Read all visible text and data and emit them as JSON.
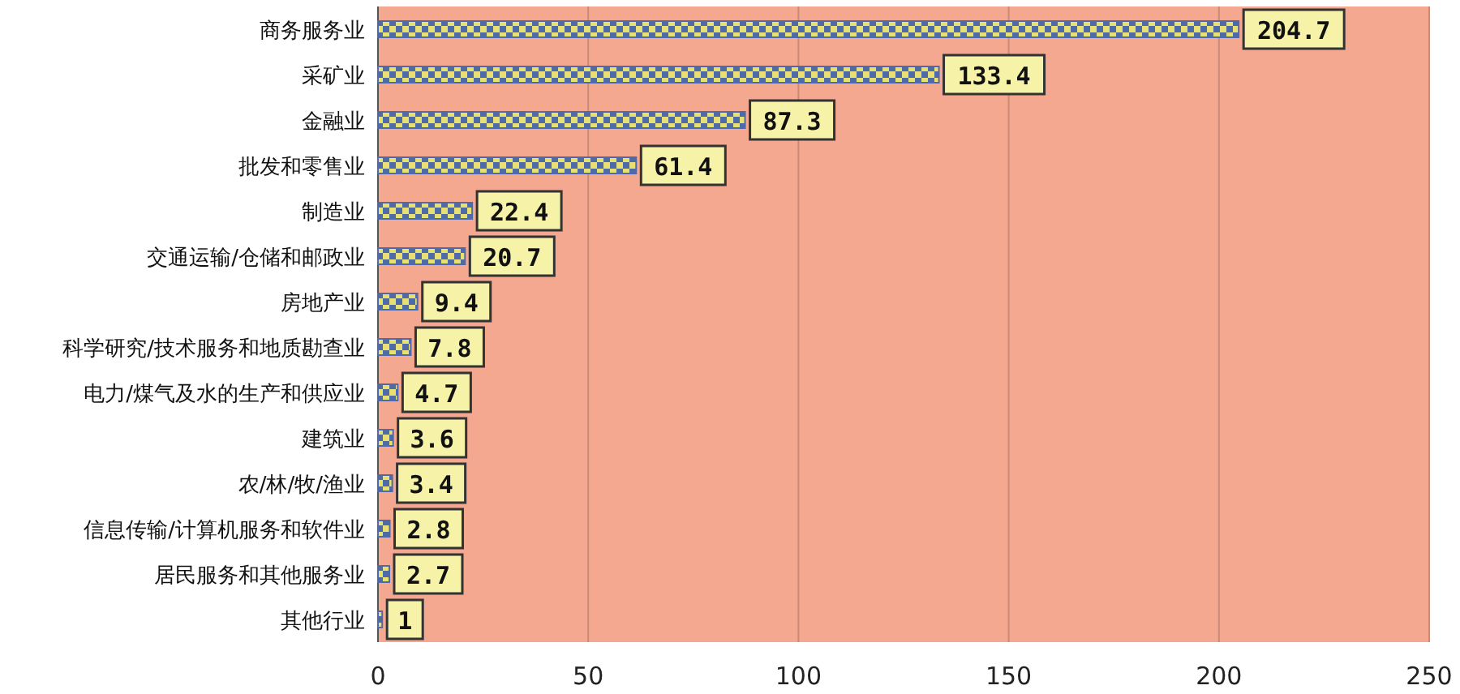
{
  "chart_data": {
    "type": "bar",
    "orientation": "horizontal",
    "categories": [
      "商务服务业",
      "采矿业",
      "金融业",
      "批发和零售业",
      "制造业",
      "交通运输/仓储和邮政业",
      "房地产业",
      "科学研究/技术服务和地质勘查业",
      "电力/煤气及水的生产和供应业",
      "建筑业",
      "农/林/牧/渔业",
      "信息传输/计算机服务和软件业",
      "居民服务和其他服务业",
      "其他行业"
    ],
    "values": [
      204.7,
      133.4,
      87.3,
      61.4,
      22.4,
      20.7,
      9.4,
      7.8,
      4.7,
      3.6,
      3.4,
      2.8,
      2.7,
      1
    ],
    "color": "#4f6aa8",
    "data_labels": true,
    "grid": "x",
    "xlim": [
      0,
      250
    ],
    "xticks": [
      0,
      50,
      100,
      150,
      200,
      250
    ]
  }
}
